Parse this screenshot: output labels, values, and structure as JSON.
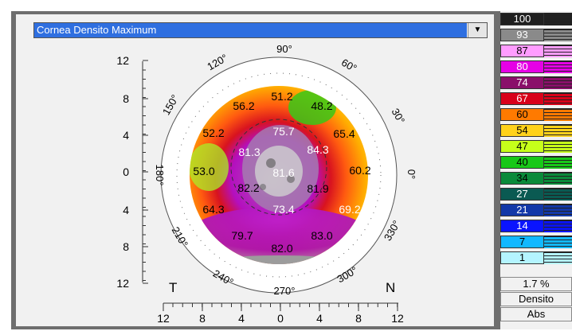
{
  "header": {
    "map_select_value": "Cornea Densito Maximum",
    "dropdown_arrow": "▼"
  },
  "axes": {
    "y_labels": [
      "12",
      "8",
      "4",
      "0",
      "4",
      "8",
      "12"
    ],
    "x_labels": [
      "12",
      "8",
      "4",
      "0",
      "4",
      "8",
      "12"
    ],
    "temporal_label": "T",
    "nasal_label": "N"
  },
  "angles": [
    {
      "label": "90°"
    },
    {
      "label": "60°"
    },
    {
      "label": "30°"
    },
    {
      "label": "0°"
    },
    {
      "label": "330°"
    },
    {
      "label": "300°"
    },
    {
      "label": "270°"
    },
    {
      "label": "240°"
    },
    {
      "label": "210°"
    },
    {
      "label": "180°"
    },
    {
      "label": "150°"
    },
    {
      "label": "120°"
    }
  ],
  "map_values": [
    {
      "value": "51.2",
      "color": "#000000"
    },
    {
      "value": "56.2",
      "color": "#000000"
    },
    {
      "value": "48.2",
      "color": "#000000"
    },
    {
      "value": "52.2",
      "color": "#000000"
    },
    {
      "value": "75.7",
      "color": "#ffffff"
    },
    {
      "value": "65.4",
      "color": "#000000"
    },
    {
      "value": "81.3",
      "color": "#ffffff"
    },
    {
      "value": "84.3",
      "color": "#ffffff"
    },
    {
      "value": "53.0",
      "color": "#000000"
    },
    {
      "value": "81.6",
      "color": "#ffffff"
    },
    {
      "value": "60.2",
      "color": "#000000"
    },
    {
      "value": "82.2",
      "color": "#000000"
    },
    {
      "value": "81.9",
      "color": "#000000"
    },
    {
      "value": "64.3",
      "color": "#000000"
    },
    {
      "value": "73.4",
      "color": "#ffffff"
    },
    {
      "value": "69.2",
      "color": "#ffffff"
    },
    {
      "value": "79.7",
      "color": "#000000"
    },
    {
      "value": "83.0",
      "color": "#000000"
    },
    {
      "value": "82.0",
      "color": "#000000"
    }
  ],
  "legend": {
    "scale": [
      {
        "label": "100",
        "color": "#202020",
        "text_color": "#ffffff"
      },
      {
        "label": "93",
        "color": "#8a8a8a",
        "text_color": "#ffffff"
      },
      {
        "label": "87",
        "color": "#ff9cff",
        "text_color": "#000000"
      },
      {
        "label": "80",
        "color": "#e600e6",
        "text_color": "#ffffff"
      },
      {
        "label": "74",
        "color": "#8a0f6a",
        "text_color": "#ffffff"
      },
      {
        "label": "67",
        "color": "#d8001a",
        "text_color": "#ffffff"
      },
      {
        "label": "60",
        "color": "#ff7a00",
        "text_color": "#000000"
      },
      {
        "label": "54",
        "color": "#ffd21a",
        "text_color": "#000000"
      },
      {
        "label": "47",
        "color": "#c6ff1a",
        "text_color": "#000000"
      },
      {
        "label": "40",
        "color": "#18c818",
        "text_color": "#000000"
      },
      {
        "label": "34",
        "color": "#0a8a3a",
        "text_color": "#000000"
      },
      {
        "label": "27",
        "color": "#0a5a52",
        "text_color": "#ffffff"
      },
      {
        "label": "21",
        "color": "#1238a8",
        "text_color": "#ffffff"
      },
      {
        "label": "14",
        "color": "#0a14ff",
        "text_color": "#ffffff"
      },
      {
        "label": "7",
        "color": "#12b8ff",
        "text_color": "#000000"
      },
      {
        "label": "1",
        "color": "#b4f4ff",
        "text_color": "#000000"
      }
    ],
    "step": "1.7 %",
    "mode": "Densito",
    "reference": "Abs"
  }
}
